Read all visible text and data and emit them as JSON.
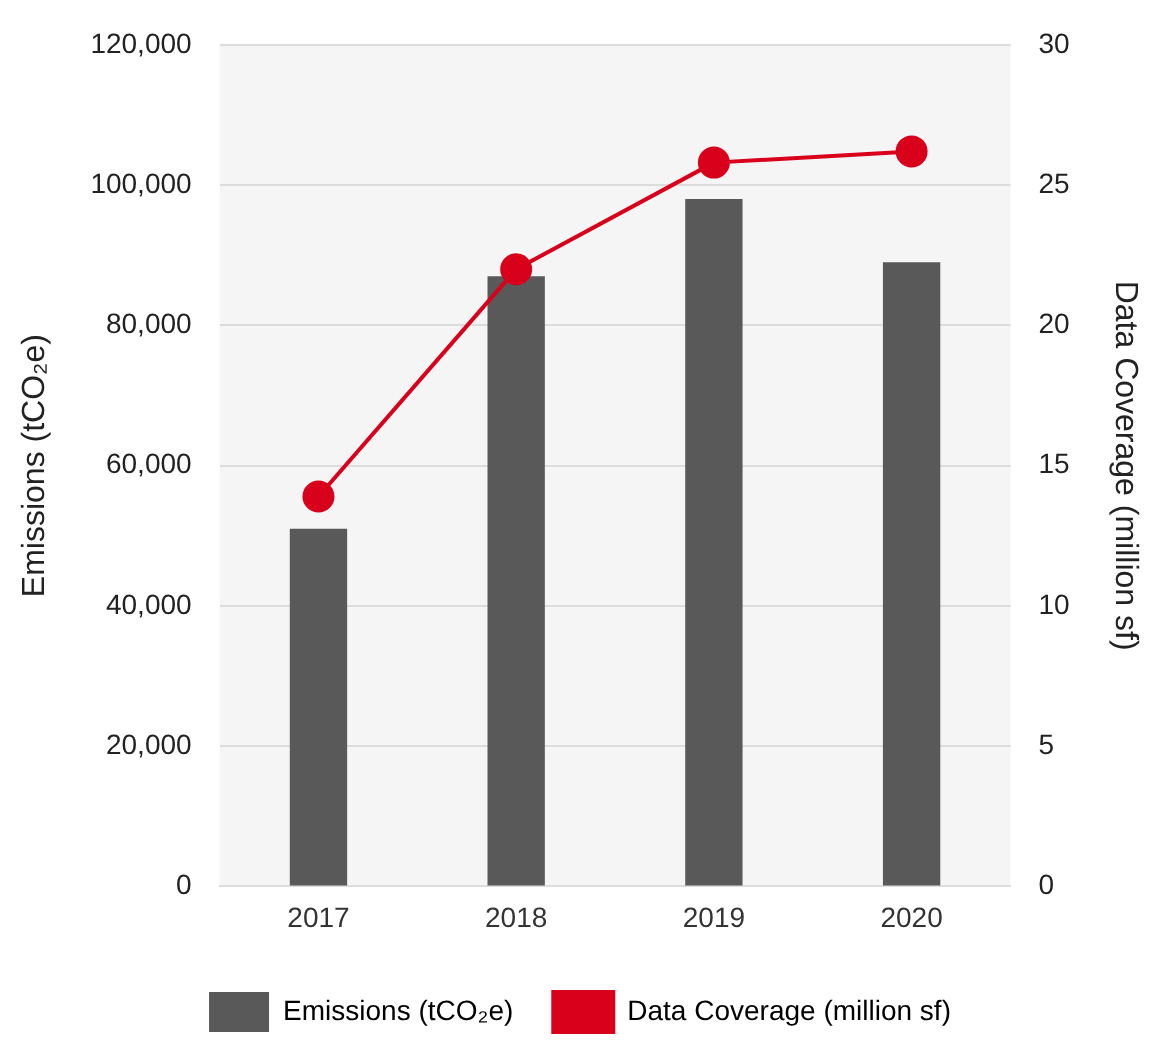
{
  "chart_data": {
    "type": "bar",
    "categories": [
      "2017",
      "2018",
      "2019",
      "2020"
    ],
    "ylabel": "Emissions (tCO₂e)",
    "y2label": "Data Coverage (million sf)",
    "series": [
      {
        "name": "Emissions (tCO₂e)",
        "color": "#595959",
        "values": [
          51000,
          87000,
          98000,
          89000
        ]
      },
      {
        "name": "Data Coverage (million sf)",
        "type": "line",
        "axis": "y2",
        "color": "#d9001b",
        "marker": "circle",
        "values": [
          13.9,
          22.0,
          25.8,
          26.2
        ]
      }
    ],
    "ylim": [
      0,
      120000
    ],
    "yticks": [
      0,
      {
        "value": 20000,
        "label": "20,000"
      },
      {
        "value": 40000,
        "label": "40,000"
      },
      {
        "value": 60000,
        "label": "60,000"
      },
      {
        "value": 80000,
        "label": "80,000"
      },
      {
        "value": 100000,
        "label": "100,000"
      },
      {
        "value": 120000,
        "label": "120,000"
      }
    ],
    "y2lim": [
      0,
      30
    ],
    "y2ticks": [
      0,
      5,
      10,
      15,
      20,
      25,
      30
    ],
    "grid": "y",
    "legend": "bottom"
  }
}
